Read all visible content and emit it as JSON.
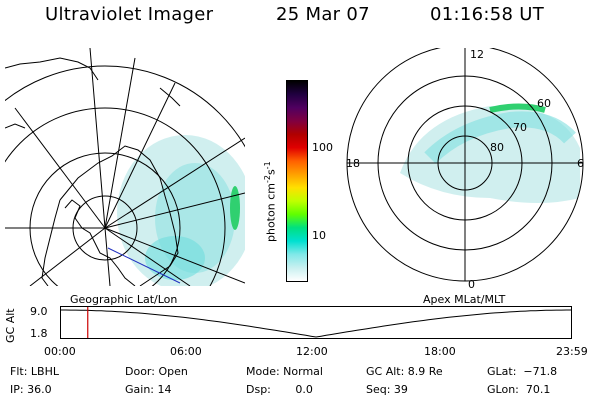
{
  "header": {
    "title": "Ultraviolet Imager",
    "date": "25 Mar 07",
    "time": "01:16:58 UT"
  },
  "left_panel": {
    "label": "Geographic Lat/Lon"
  },
  "right_panel": {
    "label": "Apex MLat/MLT",
    "mlt_labels": [
      "12",
      "18",
      "6",
      "0"
    ],
    "lat_labels": [
      "60",
      "70",
      "80"
    ]
  },
  "colorbar": {
    "unit": "photon cm",
    "exp1": "-2",
    "mid": "s",
    "exp2": "-1",
    "ticks": [
      "100",
      "10"
    ],
    "colors": [
      "#000000",
      "#200040",
      "#500060",
      "#800040",
      "#b00000",
      "#e00000",
      "#ff6000",
      "#ffa000",
      "#ffe000",
      "#c0ff00",
      "#60ff00",
      "#00e080",
      "#00e0d0",
      "#80e8e8",
      "#c8f0f0",
      "#ffffff"
    ]
  },
  "timeline": {
    "ylabel": "GC Alt",
    "y_max_label": "9.0",
    "y_min_label": "1.8",
    "x_ticks": [
      "00:00",
      "06:00",
      "12:00",
      "18:00",
      "23:59"
    ],
    "current_hour": 1.28,
    "curve_color": "#000000",
    "marker_color": "#cc0000"
  },
  "status": {
    "filter": "Flt: LBHL",
    "ip": "IP: 36.0",
    "door": "Door: Open",
    "gain": "Gain: 14",
    "mode": "Mode: Normal",
    "dsp": "Dsp:       0.0",
    "gc_alt": "GC Alt: 8.9 Re",
    "seq": "Seq: 39",
    "glat": "GLat:  −71.8",
    "glon": "GLon:  70.1"
  },
  "colors": {
    "aurora_light": "#c8ecec",
    "aurora_cyan": "#60e0e0",
    "aurora_green": "#30d070",
    "track": "#2030c0"
  }
}
